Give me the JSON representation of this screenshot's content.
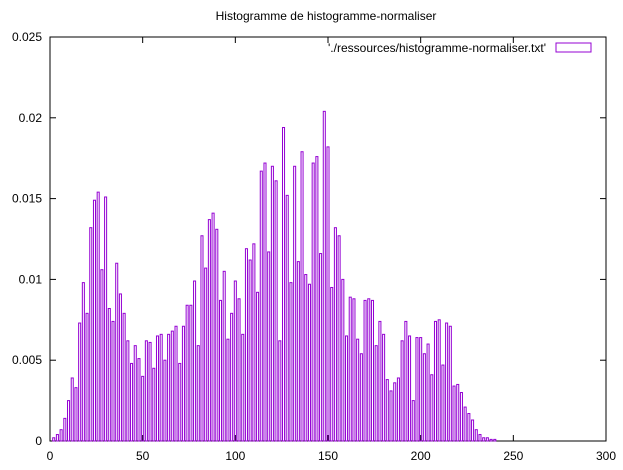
{
  "chart_data": {
    "type": "bar",
    "title": "Histogramme de histogramme-normaliser",
    "legend": {
      "label": "'./ressources/histogramme-normaliser.txt'",
      "position": "top-right",
      "color": "#9400d3"
    },
    "xlim": [
      0,
      300
    ],
    "ylim": [
      0,
      0.025
    ],
    "xticks": [
      "0",
      "50",
      "100",
      "150",
      "200",
      "250",
      "300"
    ],
    "yticks": [
      "0",
      "0.005",
      "0.01",
      "0.015",
      "0.02",
      "0.025"
    ],
    "xlabel": "",
    "ylabel": "",
    "grid": false,
    "bar_color": "#9400d3",
    "x": [
      2,
      4,
      6,
      8,
      10,
      12,
      14,
      16,
      18,
      20,
      22,
      24,
      26,
      28,
      30,
      32,
      34,
      36,
      38,
      40,
      42,
      44,
      46,
      48,
      50,
      52,
      54,
      56,
      58,
      60,
      62,
      64,
      66,
      68,
      70,
      72,
      74,
      76,
      78,
      80,
      82,
      84,
      86,
      88,
      90,
      92,
      94,
      96,
      98,
      100,
      102,
      104,
      106,
      108,
      110,
      112,
      114,
      116,
      118,
      120,
      122,
      124,
      126,
      128,
      130,
      132,
      134,
      136,
      138,
      140,
      142,
      144,
      146,
      148,
      150,
      152,
      154,
      156,
      158,
      160,
      162,
      164,
      166,
      168,
      170,
      172,
      174,
      176,
      178,
      180,
      182,
      184,
      186,
      188,
      190,
      192,
      194,
      196,
      198,
      200,
      202,
      204,
      206,
      208,
      210,
      212,
      214,
      216,
      218,
      220,
      222,
      224,
      226,
      228,
      230,
      232,
      234,
      236,
      238,
      240
    ],
    "values": [
      0.0002,
      0.0004,
      0.0007,
      0.0014,
      0.0025,
      0.0039,
      0.0033,
      0.0073,
      0.0098,
      0.0079,
      0.0132,
      0.0149,
      0.0154,
      0.0106,
      0.0151,
      0.0082,
      0.0074,
      0.011,
      0.0091,
      0.0079,
      0.0062,
      0.0048,
      0.0059,
      0.0051,
      0.004,
      0.0062,
      0.0061,
      0.0045,
      0.0065,
      0.0066,
      0.005,
      0.0066,
      0.0068,
      0.0071,
      0.0048,
      0.0071,
      0.0084,
      0.0084,
      0.0099,
      0.0059,
      0.0127,
      0.0107,
      0.0137,
      0.0141,
      0.0131,
      0.0087,
      0.0105,
      0.0063,
      0.0079,
      0.0099,
      0.0088,
      0.0066,
      0.0119,
      0.0112,
      0.0122,
      0.0092,
      0.0167,
      0.0172,
      0.0117,
      0.017,
      0.0161,
      0.0062,
      0.0194,
      0.0152,
      0.0098,
      0.017,
      0.0111,
      0.0179,
      0.0103,
      0.0097,
      0.0172,
      0.0176,
      0.0116,
      0.0204,
      0.0182,
      0.0095,
      0.0132,
      0.0127,
      0.01,
      0.0065,
      0.0089,
      0.0088,
      0.0063,
      0.0054,
      0.0087,
      0.0088,
      0.0087,
      0.0059,
      0.0074,
      0.0066,
      0.0038,
      0.0031,
      0.0036,
      0.0039,
      0.0062,
      0.0074,
      0.0065,
      0.0025,
      0.0064,
      0.0064,
      0.0054,
      0.006,
      0.0041,
      0.0074,
      0.0075,
      0.0047,
      0.0073,
      0.0071,
      0.0034,
      0.0035,
      0.003,
      0.0021,
      0.0017,
      0.0013,
      0.0007,
      0.0004,
      0.0002,
      0.0002,
      0.0001,
      0.0001
    ]
  }
}
